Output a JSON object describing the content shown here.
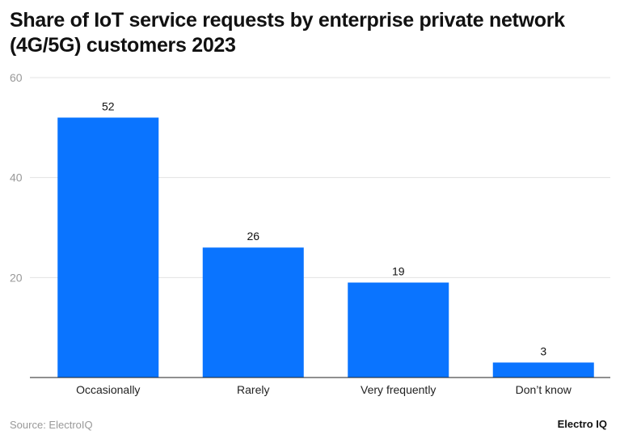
{
  "chart_data": {
    "type": "bar",
    "title": "Share of IoT service requests by enterprise private network (4G/5G) customers 2023",
    "categories": [
      "Occasionally",
      "Rarely",
      "Very frequently",
      "Don’t know"
    ],
    "values": [
      52,
      26,
      19,
      3
    ],
    "xlabel": "",
    "ylabel": "",
    "ylim": [
      0,
      60
    ],
    "yticks": [
      20,
      40,
      60
    ],
    "grid": true,
    "bar_color": "#0a74ff",
    "data_labels": true
  },
  "footer": {
    "source": "Source: ElectroIQ",
    "logo": "Electro IQ"
  }
}
